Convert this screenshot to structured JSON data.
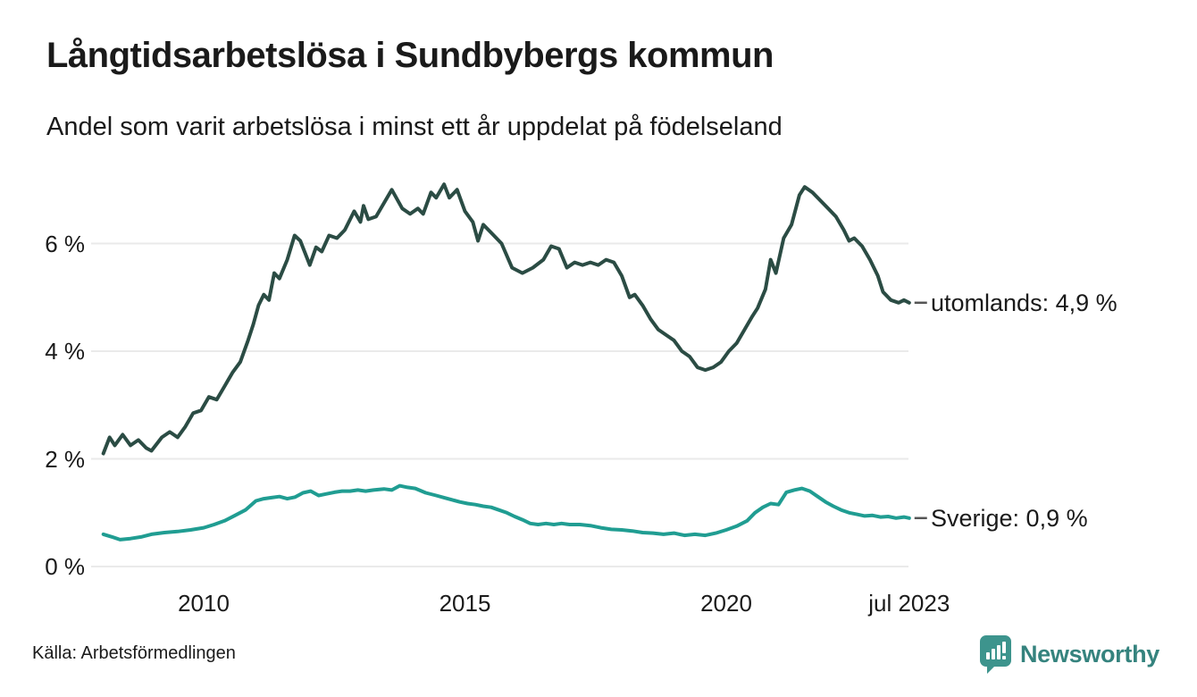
{
  "header": {
    "title": "Långtidsarbetslösa i Sundbybergs kommun",
    "subtitle": "Andel som varit arbetslösa i minst ett år uppdelat på födelseland"
  },
  "chart_data": {
    "type": "line",
    "title": "Långtidsarbetslösa i Sundbybergs kommun",
    "subtitle": "Andel som varit arbetslösa i minst ett år uppdelat på födelseland",
    "unit": "%",
    "grid": true,
    "colors": {
      "gridline": "#eaeaea",
      "text": "#1a1a1a",
      "label_dash": "#555555"
    },
    "x_axis": {
      "range_years": [
        2008.08,
        2023.5
      ],
      "ticks": [
        {
          "label": "2010",
          "year": 2010
        },
        {
          "label": "2015",
          "year": 2015
        },
        {
          "label": "2020",
          "year": 2020
        },
        {
          "label": "jul 2023",
          "year": 2023.5
        }
      ]
    },
    "y_axis": {
      "range": [
        0,
        7.3
      ],
      "ticks": [
        {
          "label": "0 %",
          "value": 0
        },
        {
          "label": "2 %",
          "value": 2
        },
        {
          "label": "4 %",
          "value": 4
        },
        {
          "label": "6 %",
          "value": 6
        }
      ]
    },
    "series": [
      {
        "name": "utomlands",
        "end_label": "utomlands: 4,9 %",
        "last_value_display": "4,9 %",
        "color": "#2b4c44",
        "points": [
          [
            2008.08,
            2.1
          ],
          [
            2008.2,
            2.4
          ],
          [
            2008.3,
            2.25
          ],
          [
            2008.45,
            2.45
          ],
          [
            2008.6,
            2.25
          ],
          [
            2008.75,
            2.35
          ],
          [
            2008.9,
            2.2
          ],
          [
            2009.0,
            2.15
          ],
          [
            2009.2,
            2.4
          ],
          [
            2009.35,
            2.5
          ],
          [
            2009.5,
            2.4
          ],
          [
            2009.65,
            2.6
          ],
          [
            2009.8,
            2.85
          ],
          [
            2009.95,
            2.9
          ],
          [
            2010.1,
            3.15
          ],
          [
            2010.25,
            3.1
          ],
          [
            2010.4,
            3.35
          ],
          [
            2010.55,
            3.6
          ],
          [
            2010.7,
            3.8
          ],
          [
            2010.85,
            4.2
          ],
          [
            2010.95,
            4.5
          ],
          [
            2011.05,
            4.85
          ],
          [
            2011.15,
            5.05
          ],
          [
            2011.25,
            4.95
          ],
          [
            2011.35,
            5.45
          ],
          [
            2011.45,
            5.35
          ],
          [
            2011.6,
            5.7
          ],
          [
            2011.74,
            6.15
          ],
          [
            2011.85,
            6.05
          ],
          [
            2012.03,
            5.6
          ],
          [
            2012.15,
            5.93
          ],
          [
            2012.26,
            5.85
          ],
          [
            2012.4,
            6.15
          ],
          [
            2012.55,
            6.1
          ],
          [
            2012.7,
            6.25
          ],
          [
            2012.88,
            6.6
          ],
          [
            2013.0,
            6.4
          ],
          [
            2013.06,
            6.7
          ],
          [
            2013.15,
            6.45
          ],
          [
            2013.3,
            6.5
          ],
          [
            2013.6,
            7.0
          ],
          [
            2013.8,
            6.65
          ],
          [
            2013.95,
            6.55
          ],
          [
            2014.1,
            6.65
          ],
          [
            2014.2,
            6.55
          ],
          [
            2014.35,
            6.95
          ],
          [
            2014.45,
            6.85
          ],
          [
            2014.6,
            7.1
          ],
          [
            2014.7,
            6.85
          ],
          [
            2014.85,
            7.0
          ],
          [
            2015.0,
            6.6
          ],
          [
            2015.15,
            6.4
          ],
          [
            2015.25,
            6.05
          ],
          [
            2015.35,
            6.35
          ],
          [
            2015.5,
            6.2
          ],
          [
            2015.7,
            6.0
          ],
          [
            2015.9,
            5.55
          ],
          [
            2016.1,
            5.45
          ],
          [
            2016.3,
            5.55
          ],
          [
            2016.5,
            5.7
          ],
          [
            2016.65,
            5.95
          ],
          [
            2016.8,
            5.9
          ],
          [
            2016.95,
            5.55
          ],
          [
            2017.1,
            5.65
          ],
          [
            2017.25,
            5.6
          ],
          [
            2017.4,
            5.65
          ],
          [
            2017.55,
            5.6
          ],
          [
            2017.7,
            5.7
          ],
          [
            2017.85,
            5.65
          ],
          [
            2018.0,
            5.4
          ],
          [
            2018.15,
            5.0
          ],
          [
            2018.25,
            5.05
          ],
          [
            2018.4,
            4.85
          ],
          [
            2018.55,
            4.6
          ],
          [
            2018.7,
            4.4
          ],
          [
            2018.85,
            4.3
          ],
          [
            2019.0,
            4.2
          ],
          [
            2019.15,
            4.0
          ],
          [
            2019.3,
            3.9
          ],
          [
            2019.45,
            3.7
          ],
          [
            2019.6,
            3.65
          ],
          [
            2019.75,
            3.7
          ],
          [
            2019.9,
            3.8
          ],
          [
            2020.05,
            4.0
          ],
          [
            2020.2,
            4.15
          ],
          [
            2020.35,
            4.4
          ],
          [
            2020.5,
            4.65
          ],
          [
            2020.6,
            4.8
          ],
          [
            2020.75,
            5.15
          ],
          [
            2020.85,
            5.7
          ],
          [
            2020.95,
            5.45
          ],
          [
            2021.1,
            6.1
          ],
          [
            2021.25,
            6.35
          ],
          [
            2021.4,
            6.9
          ],
          [
            2021.5,
            7.05
          ],
          [
            2021.65,
            6.95
          ],
          [
            2021.8,
            6.8
          ],
          [
            2021.95,
            6.65
          ],
          [
            2022.1,
            6.5
          ],
          [
            2022.25,
            6.25
          ],
          [
            2022.35,
            6.05
          ],
          [
            2022.45,
            6.1
          ],
          [
            2022.6,
            5.95
          ],
          [
            2022.75,
            5.7
          ],
          [
            2022.9,
            5.4
          ],
          [
            2023.0,
            5.1
          ],
          [
            2023.15,
            4.95
          ],
          [
            2023.3,
            4.9
          ],
          [
            2023.4,
            4.95
          ],
          [
            2023.5,
            4.9
          ]
        ]
      },
      {
        "name": "Sverige",
        "end_label": "Sverige: 0,9 %",
        "last_value_display": "0,9 %",
        "color": "#209d92",
        "points": [
          [
            2008.08,
            0.6
          ],
          [
            2008.25,
            0.55
          ],
          [
            2008.4,
            0.5
          ],
          [
            2008.6,
            0.52
          ],
          [
            2008.8,
            0.55
          ],
          [
            2009.0,
            0.6
          ],
          [
            2009.25,
            0.63
          ],
          [
            2009.5,
            0.65
          ],
          [
            2009.75,
            0.68
          ],
          [
            2010.0,
            0.72
          ],
          [
            2010.2,
            0.78
          ],
          [
            2010.4,
            0.85
          ],
          [
            2010.6,
            0.95
          ],
          [
            2010.8,
            1.05
          ],
          [
            2011.0,
            1.22
          ],
          [
            2011.15,
            1.26
          ],
          [
            2011.3,
            1.28
          ],
          [
            2011.45,
            1.3
          ],
          [
            2011.6,
            1.26
          ],
          [
            2011.75,
            1.29
          ],
          [
            2011.9,
            1.37
          ],
          [
            2012.05,
            1.4
          ],
          [
            2012.2,
            1.32
          ],
          [
            2012.35,
            1.35
          ],
          [
            2012.5,
            1.38
          ],
          [
            2012.65,
            1.4
          ],
          [
            2012.8,
            1.4
          ],
          [
            2012.95,
            1.42
          ],
          [
            2013.1,
            1.4
          ],
          [
            2013.25,
            1.42
          ],
          [
            2013.45,
            1.44
          ],
          [
            2013.6,
            1.42
          ],
          [
            2013.75,
            1.5
          ],
          [
            2013.9,
            1.47
          ],
          [
            2014.05,
            1.45
          ],
          [
            2014.25,
            1.37
          ],
          [
            2014.45,
            1.32
          ],
          [
            2014.6,
            1.28
          ],
          [
            2014.75,
            1.24
          ],
          [
            2014.9,
            1.2
          ],
          [
            2015.05,
            1.17
          ],
          [
            2015.2,
            1.15
          ],
          [
            2015.35,
            1.12
          ],
          [
            2015.5,
            1.1
          ],
          [
            2015.65,
            1.05
          ],
          [
            2015.8,
            1.0
          ],
          [
            2015.95,
            0.93
          ],
          [
            2016.1,
            0.87
          ],
          [
            2016.25,
            0.8
          ],
          [
            2016.4,
            0.78
          ],
          [
            2016.55,
            0.8
          ],
          [
            2016.7,
            0.78
          ],
          [
            2016.85,
            0.8
          ],
          [
            2017.0,
            0.78
          ],
          [
            2017.2,
            0.78
          ],
          [
            2017.4,
            0.76
          ],
          [
            2017.6,
            0.72
          ],
          [
            2017.8,
            0.69
          ],
          [
            2018.0,
            0.68
          ],
          [
            2018.2,
            0.66
          ],
          [
            2018.4,
            0.63
          ],
          [
            2018.6,
            0.62
          ],
          [
            2018.8,
            0.6
          ],
          [
            2019.0,
            0.62
          ],
          [
            2019.2,
            0.58
          ],
          [
            2019.4,
            0.6
          ],
          [
            2019.6,
            0.58
          ],
          [
            2019.8,
            0.62
          ],
          [
            2020.0,
            0.68
          ],
          [
            2020.2,
            0.75
          ],
          [
            2020.4,
            0.85
          ],
          [
            2020.55,
            1.0
          ],
          [
            2020.7,
            1.1
          ],
          [
            2020.85,
            1.17
          ],
          [
            2021.0,
            1.15
          ],
          [
            2021.15,
            1.38
          ],
          [
            2021.3,
            1.42
          ],
          [
            2021.45,
            1.45
          ],
          [
            2021.6,
            1.4
          ],
          [
            2021.75,
            1.3
          ],
          [
            2021.9,
            1.2
          ],
          [
            2022.05,
            1.12
          ],
          [
            2022.2,
            1.05
          ],
          [
            2022.35,
            1.0
          ],
          [
            2022.5,
            0.97
          ],
          [
            2022.65,
            0.94
          ],
          [
            2022.8,
            0.95
          ],
          [
            2022.95,
            0.92
          ],
          [
            2023.1,
            0.93
          ],
          [
            2023.25,
            0.9
          ],
          [
            2023.4,
            0.92
          ],
          [
            2023.5,
            0.9
          ]
        ]
      }
    ]
  },
  "footer": {
    "source": "Källa: Arbetsförmedlingen",
    "brand": {
      "name": "Newsworthy",
      "icon": "newsworthy-bubble-chart-icon",
      "text_color": "#35837e",
      "icon_color": "#3d948d"
    }
  }
}
